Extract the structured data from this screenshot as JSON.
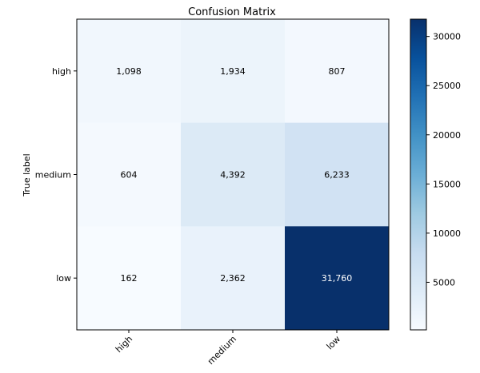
{
  "chart_data": {
    "type": "heatmap",
    "title": "Confusion Matrix",
    "ylabel": "True label",
    "xlabel": "",
    "row_labels": [
      "high",
      "medium",
      "low"
    ],
    "col_labels": [
      "high",
      "medium",
      "low"
    ],
    "values": [
      [
        1098,
        1934,
        807
      ],
      [
        604,
        4392,
        6233
      ],
      [
        162,
        2362,
        31760
      ]
    ],
    "cell_labels": [
      [
        "1,098",
        "1,934",
        "807"
      ],
      [
        "604",
        "4,392",
        "6,233"
      ],
      [
        "162",
        "2,362",
        "31,760"
      ]
    ],
    "colormap": "Blues",
    "color_range": [
      162,
      31760
    ],
    "colorbar_ticks": [
      5000,
      10000,
      15000,
      20000,
      25000,
      30000
    ],
    "colorbar_tick_labels": [
      "5000",
      "10000",
      "15000",
      "20000",
      "25000",
      "30000"
    ],
    "x_tick_rotation_deg": 45
  }
}
